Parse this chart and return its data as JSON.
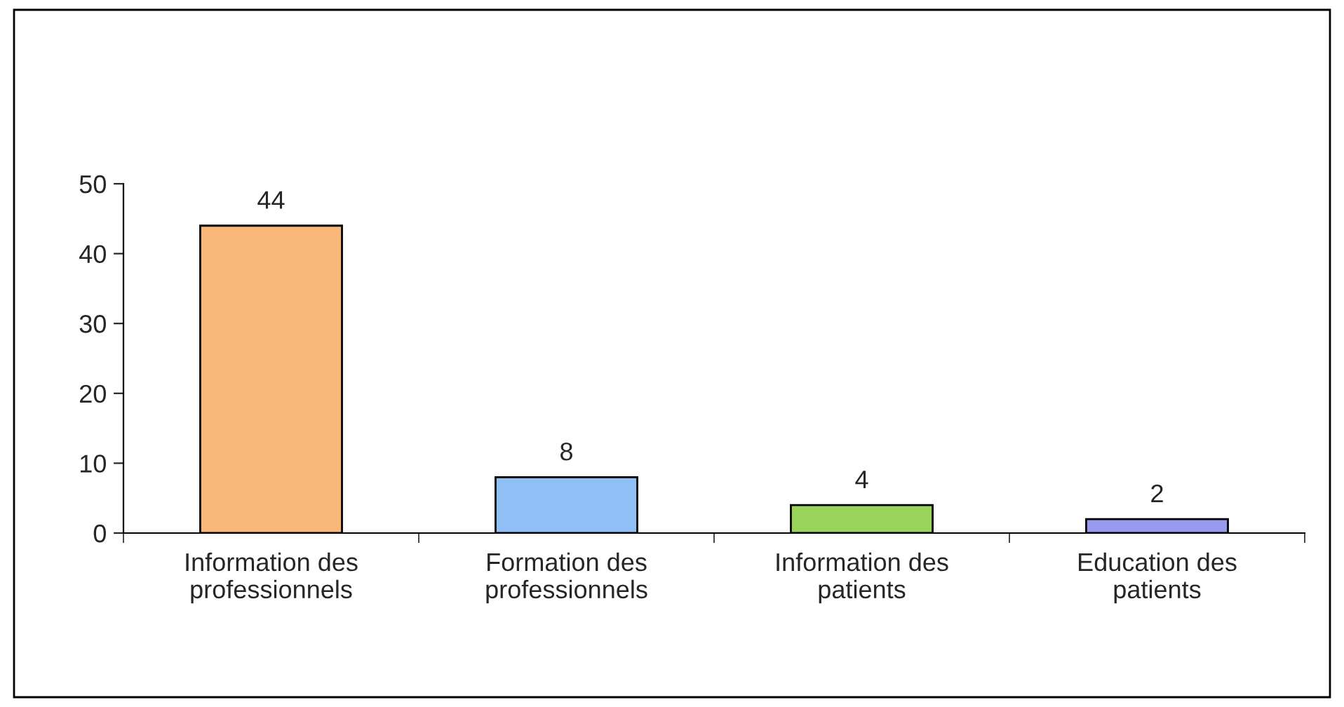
{
  "chart_data": {
    "type": "bar",
    "categories": [
      "Information des\nprofessionnels",
      "Formation des\nprofessionnels",
      "Information des\npatients",
      "Education des\npatients"
    ],
    "values": [
      44,
      8,
      4,
      2
    ],
    "colors": [
      "#f9b77a",
      "#8fbff5",
      "#99d35a",
      "#9999f0"
    ],
    "ylim": [
      0,
      50
    ],
    "yticks": [
      0,
      10,
      20,
      30,
      40,
      50
    ],
    "data_labels": true,
    "grid": false,
    "legend": false
  }
}
